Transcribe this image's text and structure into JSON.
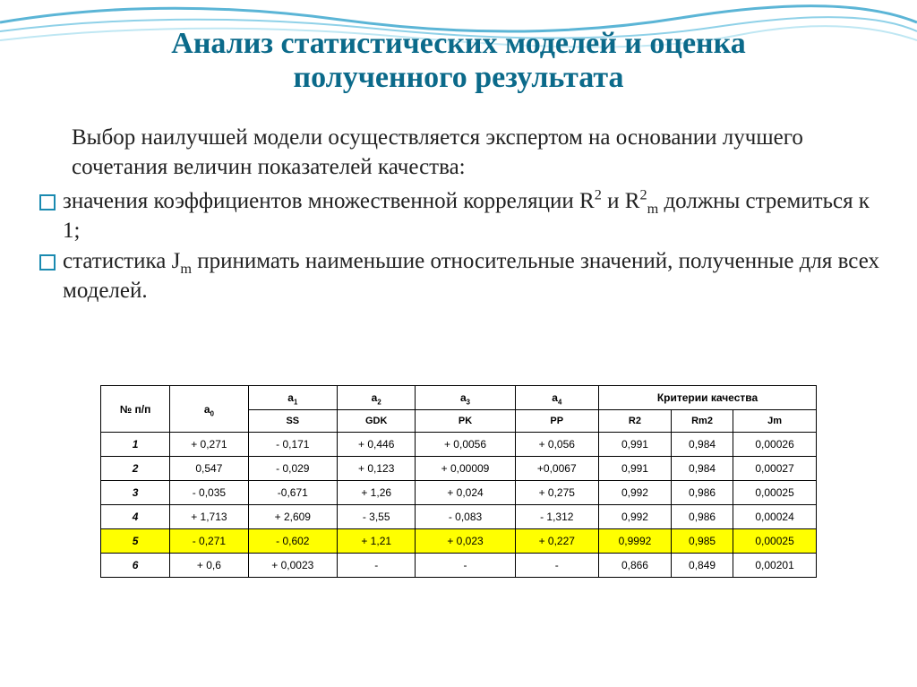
{
  "title": {
    "line1": "Анализ статистических моделей и оценка",
    "line2": "полученного результата"
  },
  "body": {
    "intro": "Выбор наилучшей модели осуществляется экспертом на основании лучшего сочетания величин показателей качества:",
    "bullet1_a": "значения коэффициентов множественной корреляции",
    "and": " и ",
    "bullet1_b": " должны стремиться к 1;",
    "bullet2_a": "статистика ",
    "bullet2_b": " принимать наименьшие относительные значений, полученные для всех моделей."
  },
  "table": {
    "headers": {
      "num": "№ п/п",
      "quality": "Критерии качества",
      "sub": [
        "SS",
        "GDK",
        "PK",
        "PP",
        "R2",
        "Rm2",
        "Jm"
      ]
    },
    "highlight_row_index": 4,
    "highlight_color": "#ffff00",
    "rows": [
      {
        "n": "1",
        "a0": "+ 0,271",
        "a1": "- 0,171",
        "a2": "+ 0,446",
        "a3": "+ 0,0056",
        "a4": "+ 0,056",
        "r2": "0,991",
        "rm2": "0,984",
        "jm": "0,00026"
      },
      {
        "n": "2",
        "a0": "0,547",
        "a1": "- 0,029",
        "a2": "+ 0,123",
        "a3": "+ 0,00009",
        "a4": "+0,0067",
        "r2": "0,991",
        "rm2": "0,984",
        "jm": "0,00027"
      },
      {
        "n": "3",
        "a0": "- 0,035",
        "a1": "-0,671",
        "a2": "+ 1,26",
        "a3": "+ 0,024",
        "a4": "+ 0,275",
        "r2": "0,992",
        "rm2": "0,986",
        "jm": "0,00025"
      },
      {
        "n": "4",
        "a0": "+ 1,713",
        "a1": "+ 2,609",
        "a2": "- 3,55",
        "a3": "- 0,083",
        "a4": "- 1,312",
        "r2": "0,992",
        "rm2": "0,986",
        "jm": "0,00024"
      },
      {
        "n": "5",
        "a0": "- 0,271",
        "a1": "- 0,602",
        "a2": "+ 1,21",
        "a3": "+ 0,023",
        "a4": "+ 0,227",
        "r2": "0,9992",
        "rm2": "0,985",
        "jm": "0,00025"
      },
      {
        "n": "6",
        "a0": "+ 0,6",
        "a1": "+ 0,0023",
        "a2": "-",
        "a3": "-",
        "a4": "-",
        "r2": "0,866",
        "rm2": "0,849",
        "jm": "0,00201"
      }
    ]
  },
  "style": {
    "title_color": "#0b6a8a",
    "bullet_border_color": "#1a8ab0",
    "table_border_color": "#000000",
    "background_color": "#ffffff"
  }
}
